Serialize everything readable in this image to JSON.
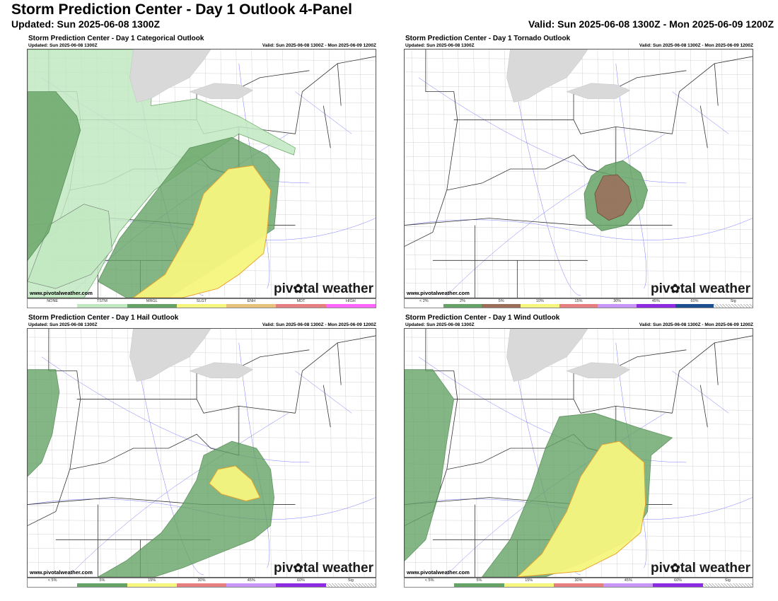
{
  "header": {
    "title": "Storm Prediction Center - Day 1 Outlook 4-Panel",
    "updated": "Updated: Sun 2025-06-08 1300Z",
    "valid": "Valid: Sun 2025-06-08 1300Z - Mon 2025-06-09 1200Z"
  },
  "panels": {
    "categorical": {
      "title": "Storm Prediction Center - Day 1 Categorical Outlook",
      "updated": "Updated: Sun 2025-06-08 1300Z",
      "valid": "Valid: Sun 2025-06-08 1300Z - Mon 2025-06-09 1200Z",
      "website": "www.pivotalweather.com",
      "legend": [
        {
          "label": "NONE",
          "color": "#ffffff"
        },
        {
          "label": "TSTM",
          "color": "#c1e9c1"
        },
        {
          "label": "MRGL",
          "color": "#66a366"
        },
        {
          "label": "SLGT",
          "color": "#f6f67f"
        },
        {
          "label": "ENH",
          "color": "#e6c27a"
        },
        {
          "label": "MDT",
          "color": "#e67f7f"
        },
        {
          "label": "HIGH",
          "color": "#ff66ff"
        }
      ]
    },
    "tornado": {
      "title": "Storm Prediction Center - Day 1 Tornado Outlook",
      "updated": "Updated: Sun 2025-06-08 1300Z",
      "valid": "Valid: Sun 2025-06-08 1300Z - Mon 2025-06-09 1200Z",
      "website": "www.pivotalweather.com",
      "legend": [
        {
          "label": "< 2%",
          "color": "#ffffff"
        },
        {
          "label": "2%",
          "color": "#66a366"
        },
        {
          "label": "5%",
          "color": "#9c6e5a"
        },
        {
          "label": "10%",
          "color": "#f6f67f"
        },
        {
          "label": "15%",
          "color": "#e67f7f"
        },
        {
          "label": "30%",
          "color": "#c896f7"
        },
        {
          "label": "45%",
          "color": "#8c2be2"
        },
        {
          "label": "60%",
          "color": "#1c4f8f"
        },
        {
          "label": "Sig",
          "color": "hatch"
        }
      ]
    },
    "hail": {
      "title": "Storm Prediction Center - Day 1 Hail Outlook",
      "updated": "Updated: Sun 2025-06-08 1300Z",
      "valid": "Valid: Sun 2025-06-08 1300Z - Mon 2025-06-09 1200Z",
      "website": "www.pivotalweather.com",
      "legend": [
        {
          "label": "< 5%",
          "color": "#ffffff"
        },
        {
          "label": "5%",
          "color": "#66a366"
        },
        {
          "label": "15%",
          "color": "#f6f67f"
        },
        {
          "label": "30%",
          "color": "#e67f7f"
        },
        {
          "label": "45%",
          "color": "#c896f7"
        },
        {
          "label": "60%",
          "color": "#8c2be2"
        },
        {
          "label": "Sig",
          "color": "hatch"
        }
      ]
    },
    "wind": {
      "title": "Storm Prediction Center - Day 1 Wind Outlook",
      "updated": "Updated: Sun 2025-06-08 1300Z",
      "valid": "Valid: Sun 2025-06-08 1300Z - Mon 2025-06-09 1200Z",
      "website": "www.pivotalweather.com",
      "legend": [
        {
          "label": "< 5%",
          "color": "#ffffff"
        },
        {
          "label": "5%",
          "color": "#66a366"
        },
        {
          "label": "15%",
          "color": "#f6f67f"
        },
        {
          "label": "30%",
          "color": "#e67f7f"
        },
        {
          "label": "45%",
          "color": "#c896f7"
        },
        {
          "label": "60%",
          "color": "#8c2be2"
        },
        {
          "label": "Sig",
          "color": "hatch"
        }
      ]
    }
  },
  "brand": {
    "pre": "piv",
    "post": "tal weather"
  },
  "colors": {
    "lake": "#d9d9d9",
    "state_border": "#333333",
    "county_border": "#c8c8c8",
    "roads": "#7b7bff"
  }
}
